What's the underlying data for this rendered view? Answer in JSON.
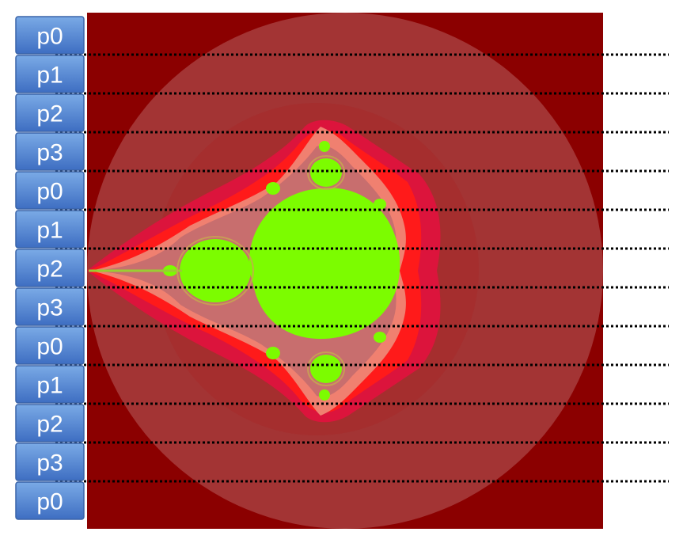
{
  "process_labels": [
    "p0",
    "p1",
    "p2",
    "p3",
    "p0",
    "p1",
    "p2",
    "p3",
    "p0",
    "p1",
    "p2",
    "p3",
    "p0"
  ],
  "colors": {
    "background": "#8b0000",
    "outer_halo": "#a23636",
    "mid_halo": "#a82f2f",
    "band_crimson": "#dc143c",
    "band_red": "#ff1a1a",
    "band_salmon": "#f08070",
    "band_dusty": "#c86e6e",
    "set_interior": "#7cfc00",
    "box_fill_top": "#6ea0e0",
    "box_fill_bottom": "#3f6fc4",
    "box_border": "#3a64a8",
    "dotted_line": "#000000"
  }
}
